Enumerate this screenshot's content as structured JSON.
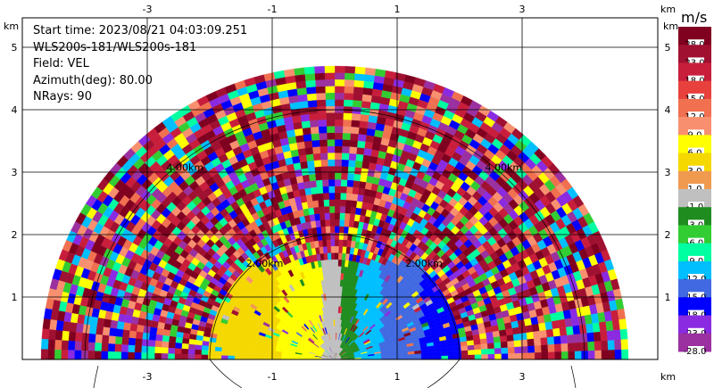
{
  "info": {
    "start_time": "Start time: 2023/08/21 04:03:09.251",
    "instrument": "WLS200s-181/WLS200s-181",
    "field": "Field: VEL",
    "azimuth": "Azimuth(deg): 80.00",
    "nrays": "NRays: 90"
  },
  "axes": {
    "unit": "km",
    "x_ticks": [
      "-3",
      "-1",
      "1",
      "3"
    ],
    "y_ticks": [
      "1",
      "2",
      "3",
      "4",
      "5"
    ]
  },
  "range_rings": [
    "2.00km",
    "4.00km"
  ],
  "colorbar": {
    "unit": "m/s",
    "labels": [
      "28.0",
      "23.0",
      "18.0",
      "15.0",
      "12.0",
      "9.0",
      "6.0",
      "3.0",
      "1.0",
      "-1.0",
      "-3.0",
      "-6.0",
      "-9.0",
      "-12.0",
      "-15.0",
      "-18.0",
      "-23.0",
      "-28.0"
    ],
    "colors": [
      "#800020",
      "#a01030",
      "#c81e3c",
      "#e8403c",
      "#f07050",
      "#f89070",
      "#ffff00",
      "#f5d800",
      "#f09a50",
      "#c0c0c0",
      "#1f8c1f",
      "#32cd32",
      "#00ffa0",
      "#00bfff",
      "#4169e1",
      "#0000ff",
      "#8a2be2",
      "#9b30a0"
    ]
  }
}
